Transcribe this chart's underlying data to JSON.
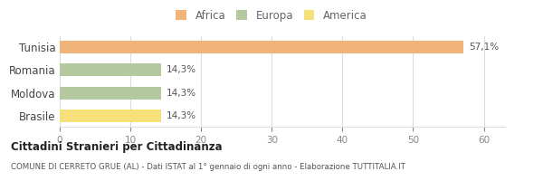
{
  "categories": [
    "Tunisia",
    "Romania",
    "Moldova",
    "Brasile"
  ],
  "values": [
    57.1,
    14.3,
    14.3,
    14.3
  ],
  "labels": [
    "57,1%",
    "14,3%",
    "14,3%",
    "14,3%"
  ],
  "bar_colors": [
    "#f0b47a",
    "#b5c9a0",
    "#b5c9a0",
    "#f5e07a"
  ],
  "legend": [
    {
      "label": "Africa",
      "color": "#f0b47a"
    },
    {
      "label": "Europa",
      "color": "#b5c9a0"
    },
    {
      "label": "America",
      "color": "#f5e07a"
    }
  ],
  "xlim": [
    0,
    63
  ],
  "xticks": [
    0,
    10,
    20,
    30,
    40,
    50,
    60
  ],
  "title_bold": "Cittadini Stranieri per Cittadinanza",
  "subtitle": "COMUNE DI CERRETO GRUE (AL) - Dati ISTAT al 1° gennaio di ogni anno - Elaborazione TUTTITALIA.IT",
  "background_color": "#ffffff",
  "grid_color": "#dddddd"
}
